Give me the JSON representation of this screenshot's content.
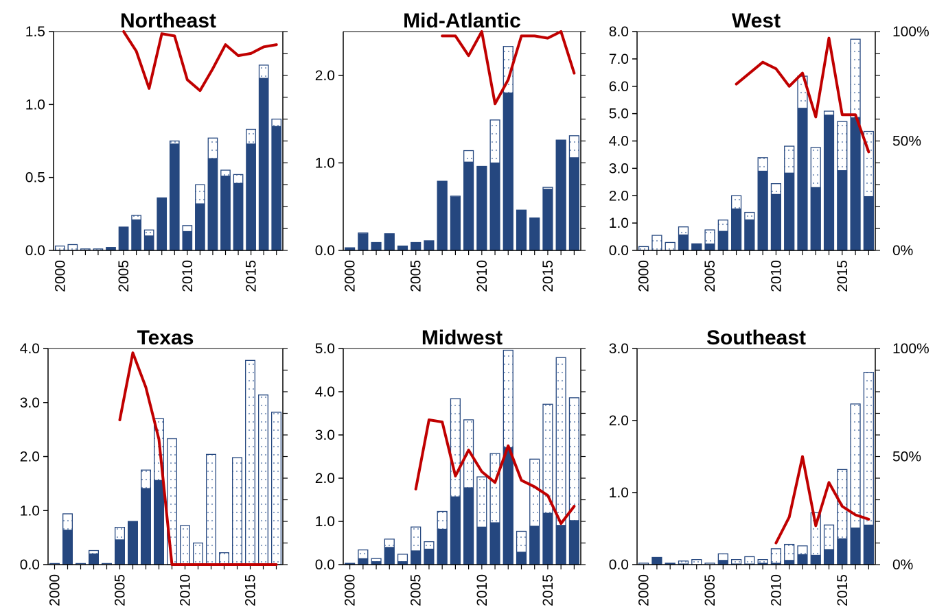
{
  "colors": {
    "solid": "#25477F",
    "hatched_fill": "#ffffff",
    "hatched_dots": "#7f98bd",
    "line": "#C00000",
    "axis": "#000000"
  },
  "right_axis_ticks": [
    "0%",
    "50%",
    "100%"
  ],
  "chart_data": [
    {
      "type": "bar",
      "title": "Northeast",
      "years": [
        2000,
        2001,
        2002,
        2003,
        2004,
        2005,
        2006,
        2007,
        2008,
        2009,
        2010,
        2011,
        2012,
        2013,
        2014,
        2015,
        2016,
        2017
      ],
      "x_tick_labels": [
        "2000",
        "2005",
        "2010",
        "2015"
      ],
      "ylim": [
        0,
        1.5
      ],
      "y_ticks": [
        0,
        0.5,
        1.0,
        1.5
      ],
      "y_tick_labels": [
        "0.0",
        "0.5",
        "1.0",
        "1.5"
      ],
      "series": [
        {
          "kind": "solid",
          "values": [
            0,
            0,
            0,
            0,
            0.02,
            0.16,
            0.21,
            0.1,
            0.36,
            0.73,
            0.13,
            0.32,
            0.63,
            0.51,
            0.46,
            0.73,
            1.18,
            0.85
          ]
        },
        {
          "kind": "hatched",
          "values": [
            0.03,
            0.04,
            0.01,
            0.01,
            0.02,
            0.16,
            0.24,
            0.14,
            0.36,
            0.75,
            0.17,
            0.45,
            0.77,
            0.55,
            0.52,
            0.83,
            1.27,
            0.9
          ]
        },
        {
          "kind": "line",
          "axis": "right",
          "start_year": 2005,
          "values": [
            1.0,
            0.91,
            0.74,
            0.99,
            0.98,
            0.78,
            0.73,
            0.83,
            0.94,
            0.89,
            0.9,
            0.93,
            0.94
          ]
        }
      ],
      "right_axis_labels_shown": false
    },
    {
      "type": "bar",
      "title": "Mid-Atlantic",
      "years": [
        2000,
        2001,
        2002,
        2003,
        2004,
        2005,
        2006,
        2007,
        2008,
        2009,
        2010,
        2011,
        2012,
        2013,
        2014,
        2015,
        2016,
        2017
      ],
      "x_tick_labels": [
        "2000",
        "2005",
        "2010",
        "2015"
      ],
      "ylim": [
        0,
        2.5
      ],
      "y_ticks": [
        0,
        1.0,
        2.0
      ],
      "y_tick_labels": [
        "0.0",
        "1.0",
        "2.0"
      ],
      "series": [
        {
          "kind": "solid",
          "values": [
            0.03,
            0.19,
            0.09,
            0.19,
            0.05,
            0.09,
            0.11,
            0.79,
            0.61,
            1.01,
            0.96,
            1.0,
            1.8,
            0.46,
            0.37,
            0.7,
            1.26,
            1.06
          ]
        },
        {
          "kind": "hatched",
          "values": [
            0.03,
            0.2,
            0.09,
            0.19,
            0.05,
            0.09,
            0.11,
            0.79,
            0.62,
            1.14,
            0.96,
            1.49,
            2.33,
            0.46,
            0.37,
            0.72,
            1.26,
            1.31
          ]
        },
        {
          "kind": "line",
          "axis": "right",
          "start_year": 2007,
          "values": [
            0.98,
            0.98,
            0.89,
            1.0,
            0.67,
            0.78,
            0.98,
            0.98,
            0.97,
            1.0,
            0.81
          ]
        }
      ],
      "right_axis_labels_shown": false
    },
    {
      "type": "bar",
      "title": "West",
      "years": [
        2000,
        2001,
        2002,
        2003,
        2004,
        2005,
        2006,
        2007,
        2008,
        2009,
        2010,
        2011,
        2012,
        2013,
        2014,
        2015,
        2016,
        2017
      ],
      "x_tick_labels": [
        "2000",
        "2005",
        "2010",
        "2015"
      ],
      "ylim": [
        0,
        8.0
      ],
      "y_ticks": [
        0,
        1,
        2,
        3,
        4,
        5,
        6,
        7,
        8
      ],
      "y_tick_labels": [
        "0.0",
        "1.0",
        "2.0",
        "3.0",
        "4.0",
        "5.0",
        "6.0",
        "7.0",
        "8.0"
      ],
      "series": [
        {
          "kind": "solid",
          "values": [
            0,
            0,
            0,
            0.57,
            0.24,
            0.24,
            0.7,
            1.52,
            1.12,
            2.9,
            2.05,
            2.83,
            5.2,
            2.3,
            4.95,
            2.92,
            4.85,
            1.97
          ]
        },
        {
          "kind": "hatched",
          "values": [
            0.14,
            0.55,
            0.29,
            0.86,
            0.24,
            0.75,
            1.11,
            2.0,
            1.39,
            3.39,
            2.44,
            3.81,
            6.37,
            3.76,
            5.09,
            4.71,
            7.72,
            4.35
          ]
        },
        {
          "kind": "line",
          "axis": "right",
          "start_year": 2007,
          "values": [
            0.76,
            0.81,
            0.86,
            0.83,
            0.75,
            0.81,
            0.61,
            0.97,
            0.62,
            0.62,
            0.45
          ]
        }
      ],
      "right_axis_labels_shown": true
    },
    {
      "type": "bar",
      "title": "Texas",
      "years": [
        2000,
        2001,
        2002,
        2003,
        2004,
        2005,
        2006,
        2007,
        2008,
        2009,
        2010,
        2011,
        2012,
        2013,
        2014,
        2015,
        2016,
        2017
      ],
      "x_tick_labels": [
        "2000",
        "2005",
        "2010",
        "2015"
      ],
      "ylim": [
        0,
        4.0
      ],
      "y_ticks": [
        0,
        1,
        2,
        3,
        4
      ],
      "y_tick_labels": [
        "0.0",
        "1.0",
        "2.0",
        "3.0",
        "4.0"
      ],
      "series": [
        {
          "kind": "solid",
          "values": [
            0,
            0.64,
            0,
            0.2,
            0,
            0.46,
            0.8,
            1.41,
            1.56,
            0,
            0,
            0,
            0,
            0,
            0,
            0,
            0,
            0
          ]
        },
        {
          "kind": "hatched",
          "values": [
            0.02,
            0.94,
            0.02,
            0.26,
            0.02,
            0.69,
            0.8,
            1.75,
            2.7,
            2.33,
            0.72,
            0.4,
            2.04,
            0.22,
            1.98,
            3.78,
            3.14,
            2.82
          ]
        },
        {
          "kind": "line",
          "axis": "right",
          "start_year": 2005,
          "values": [
            0.67,
            0.98,
            0.82,
            0.58,
            0,
            0,
            0,
            0,
            0,
            0,
            0,
            0,
            0
          ]
        }
      ],
      "right_axis_labels_shown": false
    },
    {
      "type": "bar",
      "title": "Midwest",
      "years": [
        2000,
        2001,
        2002,
        2003,
        2004,
        2005,
        2006,
        2007,
        2008,
        2009,
        2010,
        2011,
        2012,
        2013,
        2014,
        2015,
        2016,
        2017
      ],
      "x_tick_labels": [
        "2000",
        "2005",
        "2010",
        "2015"
      ],
      "ylim": [
        0,
        5.0
      ],
      "y_ticks": [
        0,
        1,
        2,
        3,
        4,
        5
      ],
      "y_tick_labels": [
        "0.0",
        "1.0",
        "2.0",
        "3.0",
        "4.0",
        "5.0"
      ],
      "series": [
        {
          "kind": "solid",
          "values": [
            0.03,
            0.14,
            0.07,
            0.4,
            0.07,
            0.32,
            0.36,
            0.82,
            1.57,
            1.78,
            0.87,
            0.97,
            2.71,
            0.29,
            0.89,
            1.19,
            0.91,
            1.02
          ]
        },
        {
          "kind": "hatched",
          "values": [
            0.03,
            0.34,
            0.14,
            0.59,
            0.24,
            0.87,
            0.53,
            1.23,
            3.84,
            3.35,
            2.03,
            2.57,
            4.96,
            0.77,
            2.44,
            3.71,
            4.79,
            3.86
          ]
        },
        {
          "kind": "line",
          "axis": "right",
          "start_year": 2005,
          "values": [
            0.35,
            0.67,
            0.66,
            0.41,
            0.53,
            0.43,
            0.38,
            0.55,
            0.39,
            0.36,
            0.32,
            0.19,
            0.27
          ]
        }
      ],
      "right_axis_labels_shown": false
    },
    {
      "type": "bar",
      "title": "Southeast",
      "years": [
        2000,
        2001,
        2002,
        2003,
        2004,
        2005,
        2006,
        2007,
        2008,
        2009,
        2010,
        2011,
        2012,
        2013,
        2014,
        2015,
        2016,
        2017
      ],
      "x_tick_labels": [
        "2000",
        "2005",
        "2010",
        "2015"
      ],
      "ylim": [
        0,
        3.0
      ],
      "y_ticks": [
        0,
        1,
        2,
        3
      ],
      "y_tick_labels": [
        "0.0",
        "1.0",
        "2.0",
        "3.0"
      ],
      "series": [
        {
          "kind": "solid",
          "values": [
            0,
            0.1,
            0.01,
            0.01,
            0,
            0,
            0.06,
            0.01,
            0.01,
            0.02,
            0.02,
            0.06,
            0.14,
            0.13,
            0.21,
            0.36,
            0.51,
            0.55
          ]
        },
        {
          "kind": "hatched",
          "values": [
            0.02,
            0.1,
            0.02,
            0.05,
            0.07,
            0.02,
            0.15,
            0.07,
            0.11,
            0.07,
            0.22,
            0.28,
            0.26,
            0.72,
            0.55,
            1.32,
            2.23,
            2.67
          ]
        },
        {
          "kind": "line",
          "axis": "right",
          "start_year": 2010,
          "values": [
            0.1,
            0.22,
            0.5,
            0.18,
            0.38,
            0.27,
            0.23,
            0.21
          ]
        }
      ],
      "right_axis_labels_shown": true
    }
  ]
}
